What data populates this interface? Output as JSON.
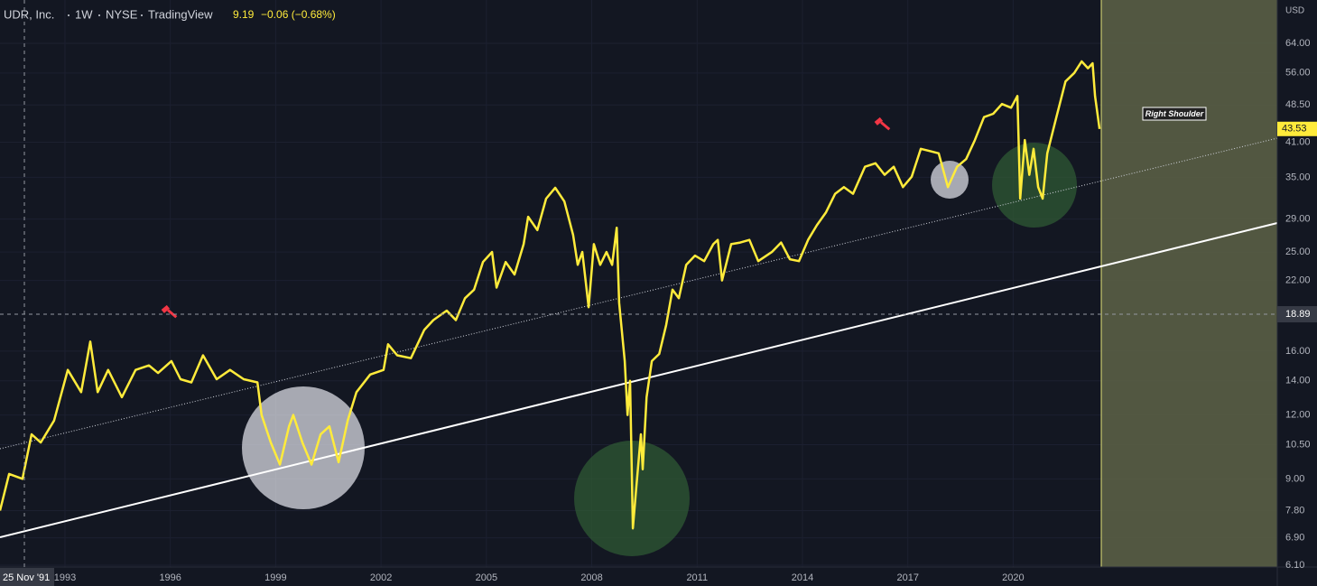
{
  "chart_data": {
    "type": "line",
    "title": "UDR, Inc.",
    "interval": "1W",
    "exchange": "NYSE",
    "source": "TradingView",
    "legend_price": "9.19",
    "legend_change": "−0.06 (−0.68%)",
    "currency": "USD",
    "log_scale": true,
    "grid": true,
    "color": "#ffeb3b",
    "x": [
      1991.15,
      1991.41,
      1991.79,
      1992.05,
      1992.31,
      1992.69,
      1993.08,
      1993.46,
      1993.72,
      1993.93,
      1994.23,
      1994.62,
      1995.01,
      1995.39,
      1995.65,
      1996.03,
      1996.29,
      1996.6,
      1996.93,
      1997.32,
      1997.7,
      1998.09,
      1998.48,
      1998.6,
      1998.86,
      1999.12,
      1999.38,
      1999.5,
      1999.76,
      2000.02,
      2000.28,
      2000.53,
      2000.79,
      2001.05,
      2001.3,
      2001.69,
      2002.07,
      2002.2,
      2002.46,
      2002.85,
      2003.23,
      2003.49,
      2003.87,
      2004.13,
      2004.39,
      2004.65,
      2004.9,
      2005.16,
      2005.29,
      2005.55,
      2005.8,
      2006.06,
      2006.19,
      2006.45,
      2006.7,
      2006.96,
      2007.22,
      2007.47,
      2007.6,
      2007.73,
      2007.91,
      2008.06,
      2008.24,
      2008.42,
      2008.58,
      2008.71,
      2008.78,
      2008.94,
      2009.02,
      2009.09,
      2009.17,
      2009.27,
      2009.4,
      2009.45,
      2009.56,
      2009.71,
      2009.92,
      2010.12,
      2010.3,
      2010.48,
      2010.69,
      2010.94,
      2011.2,
      2011.46,
      2011.59,
      2011.71,
      2011.97,
      2012.23,
      2012.49,
      2012.74,
      2013.13,
      2013.39,
      2013.64,
      2013.9,
      2014.16,
      2014.41,
      2014.67,
      2014.93,
      2015.18,
      2015.44,
      2015.78,
      2016.08,
      2016.34,
      2016.6,
      2016.86,
      2017.11,
      2017.37,
      2017.63,
      2017.88,
      2018.14,
      2018.4,
      2018.66,
      2018.91,
      2019.17,
      2019.43,
      2019.68,
      2019.94,
      2020.12,
      2020.2,
      2020.33,
      2020.46,
      2020.58,
      2020.71,
      2020.84,
      2020.97,
      2021.23,
      2021.49,
      2021.74,
      2021.95,
      2022.13,
      2022.26,
      2022.33,
      2022.46
    ],
    "values": [
      7.8,
      9.2,
      9.0,
      11.0,
      10.6,
      11.7,
      14.7,
      13.3,
      16.7,
      13.3,
      14.7,
      13.0,
      14.7,
      15.0,
      14.5,
      15.3,
      14.1,
      13.9,
      15.7,
      14.1,
      14.7,
      14.1,
      13.9,
      12.0,
      10.6,
      9.6,
      11.4,
      12.0,
      10.6,
      9.6,
      11.0,
      11.4,
      9.7,
      11.7,
      13.3,
      14.4,
      14.7,
      16.5,
      15.7,
      15.5,
      17.6,
      18.4,
      19.2,
      18.4,
      20.3,
      21.1,
      23.9,
      25.0,
      21.3,
      23.9,
      22.6,
      25.9,
      29.3,
      27.6,
      31.8,
      33.4,
      31.4,
      27.0,
      23.6,
      25.0,
      19.5,
      25.9,
      23.6,
      25.0,
      23.6,
      27.9,
      19.9,
      15.3,
      12.0,
      14.0,
      7.2,
      8.7,
      11.0,
      9.4,
      13.0,
      15.3,
      15.8,
      18.0,
      21.1,
      20.3,
      23.6,
      24.6,
      24.0,
      25.9,
      26.4,
      22.0,
      25.9,
      26.1,
      26.4,
      24.0,
      25.0,
      26.1,
      24.2,
      24.0,
      26.4,
      28.2,
      29.9,
      32.5,
      33.5,
      32.5,
      36.7,
      37.3,
      35.4,
      36.7,
      33.5,
      35.1,
      39.8,
      39.4,
      39.0,
      33.5,
      36.7,
      38.0,
      41.4,
      45.9,
      46.6,
      48.7,
      47.9,
      50.5,
      31.8,
      41.4,
      35.4,
      39.8,
      33.5,
      31.8,
      39.0,
      45.9,
      53.9,
      56.0,
      59.0,
      57.2,
      58.5,
      50.5,
      43.53
    ],
    "last_value": 43.53,
    "xlim": [
      1991.15,
      2027.52
    ],
    "ylim": [
      6.05,
      77.8
    ],
    "xticks": [
      1993,
      1996,
      1999,
      2002,
      2005,
      2008,
      2011,
      2014,
      2017,
      2020
    ],
    "yticks": [
      {
        "value": 64,
        "label": "64.00"
      },
      {
        "value": 56,
        "label": "56.00"
      },
      {
        "value": 48.5,
        "label": "48.50"
      },
      {
        "value": 41,
        "label": "41.00"
      },
      {
        "value": 35,
        "label": "35.00"
      },
      {
        "value": 29,
        "label": "29.00"
      },
      {
        "value": 25,
        "label": "25.00"
      },
      {
        "value": 22,
        "label": "22.00"
      },
      {
        "value": 16,
        "label": "16.00"
      },
      {
        "value": 14,
        "label": "14.00"
      },
      {
        "value": 12,
        "label": "12.00"
      },
      {
        "value": 10.5,
        "label": "10.50"
      },
      {
        "value": 9,
        "label": "9.00"
      },
      {
        "value": 7.8,
        "label": "7.80"
      },
      {
        "value": 6.9,
        "label": "6.90"
      },
      {
        "value": 6.1,
        "label": "6.10"
      }
    ],
    "crosshair": {
      "x_label": "25 Nov '91",
      "y": 18.89
    },
    "annotations": [
      {
        "text": "Right Shoulder"
      }
    ]
  }
}
